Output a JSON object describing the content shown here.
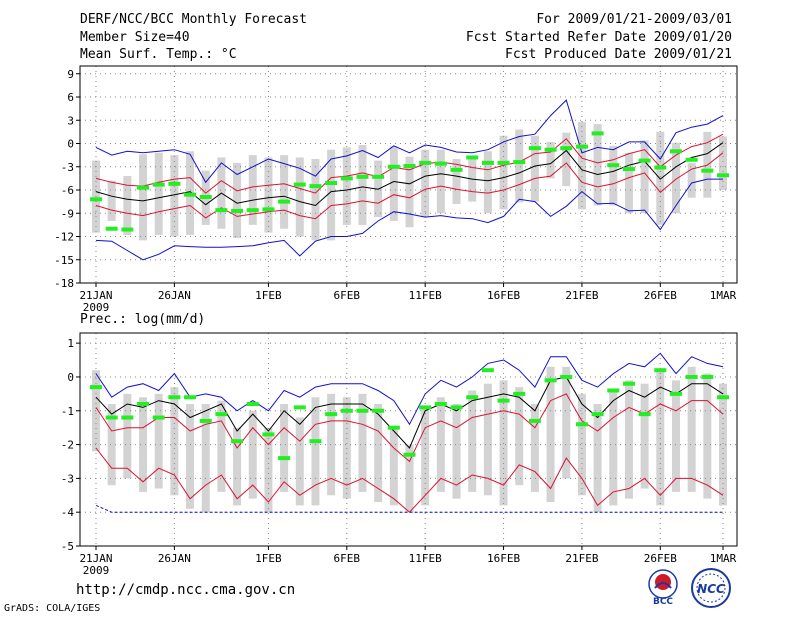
{
  "header": {
    "title": "DERF/NCC/BCC Monthly Forecast",
    "member_size": "Member Size=40",
    "variable": "Mean Surf. Temp.: °C",
    "period": "For 2009/01/21-2009/03/01",
    "refer_date": "Fcst Started Refer Date 2009/01/20",
    "produced_date": "Fcst Produced Date 2009/01/21"
  },
  "footer": {
    "url": "http://cmdp.ncc.cma.gov.cn",
    "grads": "GrADS: COLA/IGES",
    "logo_left_text": "BCC",
    "logo_right_text": "NCC"
  },
  "colors": {
    "box": "#d3d3d3",
    "ensemble_mean": "#000000",
    "inner_band": "#dd1133",
    "outer_band": "#1111cc",
    "marker": "#22ee22",
    "grid": "#888888"
  },
  "chart_data": [
    {
      "type": "box",
      "title": "Mean Surf. Temp.: °C",
      "ylim": [
        -18,
        10
      ],
      "yticks": [
        9,
        6,
        3,
        0,
        -3,
        -6,
        -9,
        -12,
        -15,
        -18
      ],
      "x_tick_labels": [
        "21JAN",
        "26JAN",
        "1FEB",
        "6FEB",
        "11FEB",
        "16FEB",
        "21FEB",
        "26FEB",
        "1MAR"
      ],
      "x_tick_days": [
        0,
        5,
        11,
        16,
        21,
        26,
        31,
        36,
        40
      ],
      "x_sublabel": "2009",
      "n_days": 41,
      "ensemble_mean": [
        -6.2,
        -6.8,
        -7.2,
        -7.4,
        -7.0,
        -6.6,
        -6.2,
        -7.9,
        -6.4,
        -7.7,
        -7.3,
        -7.0,
        -6.8,
        -7.5,
        -8.0,
        -6.2,
        -6.0,
        -5.6,
        -5.9,
        -4.9,
        -5.2,
        -4.2,
        -3.9,
        -4.2,
        -4.6,
        -4.8,
        -4.4,
        -3.8,
        -2.9,
        -2.6,
        -0.9,
        -3.4,
        -4.0,
        -3.6,
        -2.8,
        -2.3,
        -4.6,
        -3.0,
        -1.8,
        -1.3,
        0.1
      ],
      "inner_upper": [
        -4.5,
        -5.0,
        -5.4,
        -5.5,
        -5.0,
        -4.6,
        -4.4,
        -6.4,
        -4.8,
        -6.1,
        -5.6,
        -5.4,
        -5.2,
        -5.8,
        -6.4,
        -4.4,
        -4.2,
        -3.8,
        -4.3,
        -3.1,
        -3.4,
        -2.6,
        -2.4,
        -2.7,
        -3.1,
        -3.4,
        -2.8,
        -2.4,
        -1.3,
        -1.1,
        0.6,
        -1.9,
        -2.5,
        -2.1,
        -1.3,
        -0.8,
        -3.0,
        -1.5,
        -0.4,
        0.1,
        1.2
      ],
      "inner_lower": [
        -8.0,
        -8.6,
        -9.0,
        -9.3,
        -8.8,
        -8.4,
        -8.0,
        -9.6,
        -8.3,
        -9.4,
        -9.1,
        -8.8,
        -8.6,
        -9.3,
        -9.7,
        -8.0,
        -7.8,
        -7.4,
        -7.7,
        -6.6,
        -7.0,
        -5.9,
        -5.5,
        -5.9,
        -6.2,
        -6.4,
        -6.0,
        -5.3,
        -4.5,
        -4.2,
        -2.5,
        -5.0,
        -5.6,
        -5.2,
        -4.4,
        -3.8,
        -6.3,
        -4.6,
        -3.3,
        -2.8,
        -1.2
      ],
      "outer_upper": [
        -0.5,
        -1.5,
        -1.0,
        -1.2,
        -1.0,
        -0.8,
        -1.4,
        -5.0,
        -2.5,
        -4.0,
        -3.0,
        -2.0,
        -2.6,
        -3.2,
        -4.2,
        -2.0,
        -1.6,
        -0.9,
        -1.8,
        -0.3,
        -1.2,
        -0.2,
        -0.5,
        -1.1,
        -1.2,
        -0.8,
        0.2,
        0.9,
        1.2,
        3.6,
        5.6,
        -1.2,
        -0.5,
        -0.8,
        0.2,
        0.2,
        -2.0,
        1.4,
        2.1,
        2.5,
        3.6
      ],
      "outer_lower": [
        -12.5,
        -12.6,
        -13.8,
        -15.0,
        -14.3,
        -13.2,
        -13.3,
        -13.4,
        -13.4,
        -13.3,
        -13.2,
        -12.8,
        -12.5,
        -14.5,
        -12.6,
        -12.0,
        -12.0,
        -11.6,
        -10.0,
        -8.8,
        -9.1,
        -9.5,
        -9.3,
        -9.6,
        -9.7,
        -10.2,
        -9.4,
        -7.2,
        -7.5,
        -9.4,
        -8.1,
        -6.2,
        -7.8,
        -7.7,
        -8.7,
        -8.6,
        -11.1,
        -8.0,
        -5.1,
        -4.6,
        -4.6
      ],
      "box_top": [
        -2.2,
        -4.8,
        -4.2,
        -1.4,
        -1.2,
        -1.5,
        -1.0,
        -3.5,
        -1.8,
        -2.5,
        -1.5,
        -1.8,
        -1.5,
        -1.8,
        -2.0,
        -0.8,
        -0.5,
        -0.2,
        -2.2,
        -0.4,
        -1.7,
        -0.8,
        -0.8,
        -2.0,
        -2.0,
        -1.0,
        1.0,
        1.8,
        1.0,
        0.2,
        1.4,
        2.8,
        2.5,
        -0.3,
        -1.2,
        0.4,
        1.5,
        0.1,
        -2.5,
        1.5,
        0.9
      ],
      "box_bottom": [
        -11.5,
        -10.0,
        -11.8,
        -12.5,
        -11.8,
        -12.0,
        -11.8,
        -10.5,
        -11.0,
        -12.2,
        -10.5,
        -11.5,
        -11.0,
        -12.0,
        -12.5,
        -12.5,
        -10.5,
        -10.5,
        -9.5,
        -10.0,
        -10.8,
        -9.5,
        -9.0,
        -7.8,
        -7.5,
        -9.0,
        -8.5,
        -7.6,
        -7.5,
        -4.5,
        -5.5,
        -8.5,
        -8.0,
        -8.0,
        -9.0,
        -9.0,
        -10.5,
        -9.0,
        -7.0,
        -7.0,
        -6.0
      ],
      "markers": [
        -7.2,
        -11.0,
        -11.1,
        -5.7,
        -5.3,
        -5.2,
        -6.6,
        -6.9,
        -8.6,
        -8.7,
        -8.6,
        -8.5,
        -7.5,
        -5.3,
        -5.5,
        -5.1,
        -4.5,
        -4.3,
        -4.3,
        -3.0,
        -2.9,
        -2.5,
        -2.6,
        -3.4,
        -1.8,
        -2.5,
        -2.5,
        -2.4,
        -0.6,
        -0.8,
        -0.6,
        -0.4,
        1.3,
        -2.8,
        -3.3,
        -2.2,
        -3.1,
        -1.0,
        -2.1,
        -3.5,
        -4.1
      ]
    },
    {
      "type": "box",
      "title": "Prec.: log(mm/d)",
      "ylim": [
        -5,
        1.3
      ],
      "yticks": [
        1,
        0,
        -1,
        -2,
        -3,
        -4,
        -5
      ],
      "x_tick_labels": [
        "21JAN",
        "26JAN",
        "1FEB",
        "6FEB",
        "11FEB",
        "16FEB",
        "21FEB",
        "26FEB",
        "1MAR"
      ],
      "x_tick_days": [
        0,
        5,
        11,
        16,
        21,
        26,
        31,
        36,
        40
      ],
      "x_sublabel": "2009",
      "n_days": 41,
      "ensemble_mean": [
        -0.6,
        -1.1,
        -0.8,
        -0.9,
        -0.7,
        -0.8,
        -1.2,
        -1.0,
        -0.8,
        -1.6,
        -1.1,
        -1.6,
        -1.0,
        -1.4,
        -0.9,
        -0.8,
        -0.8,
        -0.8,
        -1.1,
        -1.6,
        -2.1,
        -1.0,
        -0.8,
        -1.0,
        -0.7,
        -0.6,
        -0.5,
        -0.6,
        -1.0,
        -0.1,
        0.0,
        -0.8,
        -1.2,
        -0.7,
        -0.4,
        -0.6,
        -0.3,
        -0.5,
        -0.2,
        -0.2,
        -0.5
      ],
      "inner_upper": [
        -0.9,
        -1.6,
        -1.5,
        -1.5,
        -1.2,
        -1.2,
        -1.6,
        -1.4,
        -1.3,
        -2.1,
        -1.5,
        -2.0,
        -1.5,
        -1.9,
        -1.4,
        -1.3,
        -1.3,
        -1.4,
        -1.6,
        -2.1,
        -2.5,
        -1.5,
        -1.3,
        -1.5,
        -1.2,
        -1.1,
        -1.0,
        -1.1,
        -1.5,
        -0.7,
        -0.5,
        -1.3,
        -1.6,
        -1.2,
        -0.9,
        -1.1,
        -0.8,
        -1.0,
        -0.7,
        -0.7,
        -1.1
      ],
      "inner_lower": [
        -2.1,
        -2.7,
        -2.7,
        -3.1,
        -2.7,
        -2.9,
        -3.6,
        -3.2,
        -2.9,
        -3.6,
        -3.2,
        -3.7,
        -3.1,
        -3.5,
        -3.2,
        -3.0,
        -3.2,
        -3.0,
        -3.3,
        -3.6,
        -4.0,
        -3.5,
        -3.0,
        -3.2,
        -2.9,
        -3.0,
        -3.2,
        -2.6,
        -2.8,
        -3.3,
        -2.4,
        -3.0,
        -3.8,
        -3.4,
        -3.3,
        -3.0,
        -3.5,
        -3.0,
        -3.0,
        -3.2,
        -3.5
      ],
      "outer_upper": [
        0.1,
        -0.6,
        -0.3,
        -0.2,
        -0.4,
        0.1,
        -0.6,
        -0.5,
        -0.6,
        -1.0,
        -0.7,
        -1.0,
        -0.4,
        -0.6,
        -0.3,
        -0.2,
        -0.2,
        -0.2,
        -0.4,
        -0.7,
        -1.4,
        -0.5,
        -0.1,
        -0.3,
        0.0,
        0.4,
        0.5,
        0.2,
        -0.3,
        0.6,
        0.6,
        -0.1,
        -0.3,
        0.1,
        0.4,
        0.3,
        0.7,
        0.1,
        0.6,
        0.4,
        0.3
      ],
      "outer_lower": [
        -3.8,
        -4.0,
        -4.0,
        -4.0,
        -4.0,
        -4.0,
        -4.0,
        -4.0,
        -4.0,
        -4.0,
        -4.0,
        -4.0,
        -4.0,
        -4.0,
        -4.0,
        -4.0,
        -4.0,
        -4.0,
        -4.0,
        -4.0,
        -4.0,
        -4.0,
        -4.0,
        -4.0,
        -4.0,
        -4.0,
        -4.0,
        -4.0,
        -4.0,
        -4.0,
        -4.0,
        -4.0,
        -4.0,
        -4.0,
        -4.0,
        -4.0,
        -4.0,
        -4.0,
        -4.0,
        -4.0,
        -4.0
      ],
      "box_top": [
        0.2,
        -0.8,
        -0.5,
        -0.6,
        -0.5,
        -0.3,
        -0.8,
        -0.8,
        -0.7,
        -1.5,
        -1.0,
        -1.5,
        -0.8,
        -1.2,
        -0.6,
        -0.5,
        -0.6,
        -0.5,
        -0.8,
        -1.5,
        -2.0,
        -0.9,
        -0.6,
        -0.8,
        -0.4,
        -0.2,
        -0.1,
        -0.3,
        -0.8,
        0.3,
        0.3,
        -0.5,
        -0.8,
        -0.4,
        -0.1,
        -0.2,
        0.2,
        -0.1,
        0.3,
        0.1,
        -0.2
      ],
      "box_bottom": [
        -2.2,
        -3.2,
        -3.0,
        -3.4,
        -3.3,
        -3.5,
        -3.9,
        -4.0,
        -3.4,
        -3.8,
        -3.6,
        -4.0,
        -3.4,
        -3.8,
        -3.8,
        -3.5,
        -3.6,
        -3.4,
        -3.7,
        -3.8,
        -4.0,
        -3.8,
        -3.4,
        -3.6,
        -3.4,
        -3.5,
        -3.8,
        -3.2,
        -3.4,
        -3.7,
        -3.0,
        -3.5,
        -4.0,
        -3.8,
        -3.6,
        -3.3,
        -3.8,
        -3.4,
        -3.4,
        -3.6,
        -3.8
      ],
      "markers": [
        -0.3,
        -1.2,
        -1.2,
        -0.8,
        -1.2,
        -0.6,
        -0.6,
        -1.3,
        -1.1,
        -1.9,
        -0.8,
        -1.7,
        -2.4,
        -0.9,
        -1.9,
        -1.1,
        -1.0,
        -1.0,
        -1.0,
        -1.5,
        -2.3,
        -0.9,
        -0.8,
        -0.9,
        -0.6,
        0.2,
        -0.7,
        -0.5,
        -1.3,
        -0.1,
        0.0,
        -1.4,
        -1.1,
        -0.4,
        -0.2,
        -1.1,
        0.2,
        -0.5,
        0.0,
        0.0,
        -0.6
      ]
    }
  ]
}
